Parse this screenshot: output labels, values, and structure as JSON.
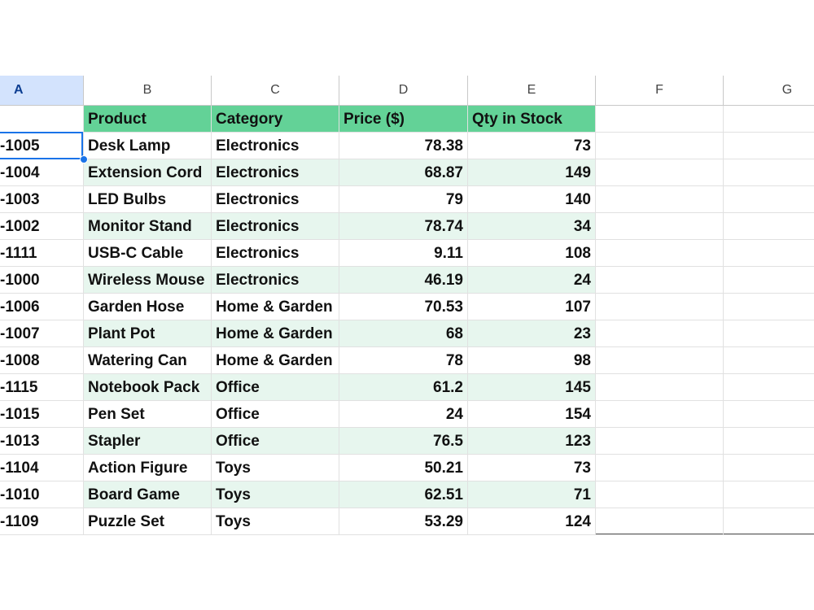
{
  "column_headers": [
    "A",
    "B",
    "C",
    "D",
    "E",
    "F",
    "G"
  ],
  "header_row": [
    "Product",
    "Category",
    "Price ($)",
    "Qty in Stock"
  ],
  "rows": [
    [
      "-1005",
      "Desk Lamp",
      "Electronics",
      78.38,
      73
    ],
    [
      "-1004",
      "Extension Cord",
      "Electronics",
      68.87,
      149
    ],
    [
      "-1003",
      "LED Bulbs",
      "Electronics",
      79,
      140
    ],
    [
      "-1002",
      "Monitor Stand",
      "Electronics",
      78.74,
      34
    ],
    [
      "-1111",
      "USB-C Cable",
      "Electronics",
      9.11,
      108
    ],
    [
      "-1000",
      "Wireless Mouse",
      "Electronics",
      46.19,
      24
    ],
    [
      "-1006",
      "Garden Hose",
      "Home & Garden",
      70.53,
      107
    ],
    [
      "-1007",
      "Plant Pot",
      "Home & Garden",
      68,
      23
    ],
    [
      "-1008",
      "Watering Can",
      "Home & Garden",
      78,
      98
    ],
    [
      "-1115",
      "Notebook Pack",
      "Office",
      61.2,
      145
    ],
    [
      "-1015",
      "Pen Set",
      "Office",
      24,
      154
    ],
    [
      "-1013",
      "Stapler",
      "Office",
      76.5,
      123
    ],
    [
      "-1104",
      "Action Figure",
      "Toys",
      50.21,
      73
    ],
    [
      "-1010",
      "Board Game",
      "Toys",
      62.51,
      71
    ],
    [
      "-1109",
      "Puzzle Set",
      "Toys",
      53.29,
      124
    ]
  ]
}
